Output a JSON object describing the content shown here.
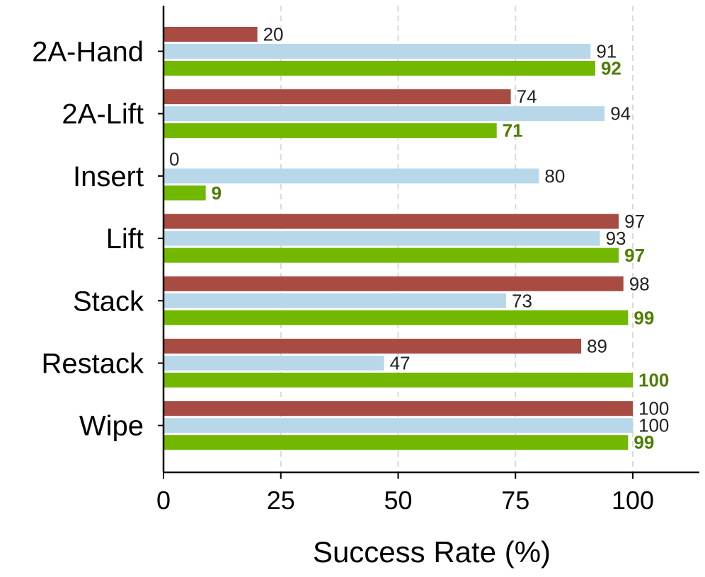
{
  "chart_data": {
    "type": "bar",
    "orientation": "horizontal",
    "categories": [
      "2A-Hand",
      "2A-Lift",
      "Insert",
      "Lift",
      "Stack",
      "Restack",
      "Wipe"
    ],
    "series": [
      {
        "color": "#a84b42",
        "values": [
          20,
          74,
          0,
          97,
          98,
          89,
          100
        ],
        "label_color": "#222222",
        "label_bold": false
      },
      {
        "color": "#b8d8ea",
        "values": [
          91,
          94,
          80,
          93,
          73,
          47,
          100
        ],
        "label_color": "#222222",
        "label_bold": false
      },
      {
        "color": "#72b800",
        "values": [
          92,
          71,
          9,
          97,
          99,
          100,
          99
        ],
        "label_color": "#4e7d00",
        "label_bold": true
      }
    ],
    "xlabel": "Success Rate (%)",
    "ylabel": "",
    "title": "",
    "xlim": [
      0,
      114
    ],
    "xticks": [
      "0",
      "25",
      "50",
      "75",
      "100"
    ],
    "xtick_values": [
      0,
      25,
      50,
      75,
      100
    ],
    "grid": "vertical dashed",
    "legend": "none"
  }
}
